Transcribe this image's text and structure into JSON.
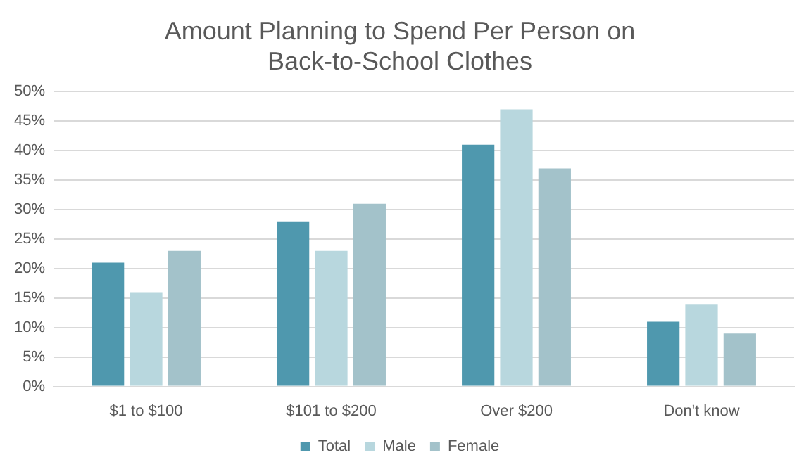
{
  "chart_data": {
    "type": "bar",
    "title": "Amount Planning to Spend Per Person on Back-to-School Clothes",
    "categories": [
      "$1 to $100",
      "$101 to $200",
      "Over $200",
      "Don't know"
    ],
    "series": [
      {
        "name": "Total",
        "color": "#4f98ae",
        "values": [
          21,
          28,
          41,
          11
        ]
      },
      {
        "name": "Male",
        "color": "#b8d7de",
        "values": [
          16,
          23,
          47,
          14
        ]
      },
      {
        "name": "Female",
        "color": "#a3c2ca",
        "values": [
          23,
          31,
          37,
          9
        ]
      }
    ],
    "ylim": [
      0,
      50
    ],
    "yticks": [
      {
        "value": 0,
        "label": "0%"
      },
      {
        "value": 5,
        "label": "5%"
      },
      {
        "value": 10,
        "label": "10%"
      },
      {
        "value": 15,
        "label": "15%"
      },
      {
        "value": 20,
        "label": "20%"
      },
      {
        "value": 25,
        "label": "25%"
      },
      {
        "value": 30,
        "label": "30%"
      },
      {
        "value": 35,
        "label": "35%"
      },
      {
        "value": 40,
        "label": "40%"
      },
      {
        "value": 45,
        "label": "45%"
      },
      {
        "value": 50,
        "label": "50%"
      }
    ],
    "grid": "y",
    "legend": "bottom"
  }
}
